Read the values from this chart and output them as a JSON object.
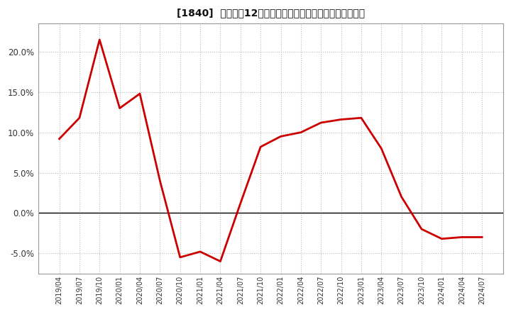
{
  "title": "[1840]  売上高の12か月移動合計の対前年同期増減率の推移",
  "line_color": "#cc0000",
  "line_width": 2.0,
  "background_color": "#ffffff",
  "plot_bg_color": "#ffffff",
  "grid_color": "#bbbbbb",
  "ylim": [
    -0.075,
    0.235
  ],
  "yticks": [
    -0.05,
    0.0,
    0.05,
    0.1,
    0.15,
    0.2
  ],
  "dates": [
    "2019/04",
    "2019/07",
    "2019/10",
    "2020/01",
    "2020/04",
    "2020/07",
    "2020/10",
    "2021/01",
    "2021/04",
    "2021/07",
    "2021/10",
    "2022/01",
    "2022/04",
    "2022/07",
    "2022/10",
    "2023/01",
    "2023/04",
    "2023/07",
    "2023/10",
    "2024/01",
    "2024/04",
    "2024/07"
  ],
  "values": [
    0.092,
    0.118,
    0.215,
    0.13,
    0.148,
    0.04,
    -0.055,
    -0.048,
    -0.06,
    0.012,
    0.082,
    0.095,
    0.1,
    0.112,
    0.116,
    0.118,
    0.08,
    0.02,
    -0.02,
    -0.032,
    -0.03,
    -0.03
  ]
}
